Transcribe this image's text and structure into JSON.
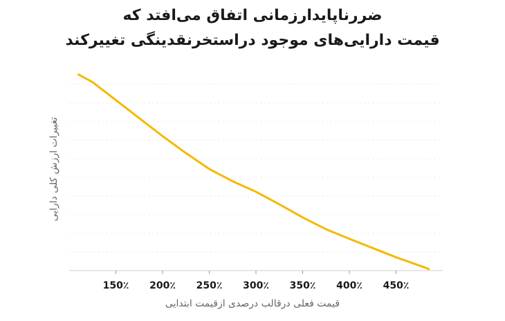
{
  "chart_data": {
    "type": "line",
    "title": "ضررناپایدارزمانی اتفاق می‌افتد که",
    "subtitle": "قیمت دارایی‌های موجود دراستخرنقدینگی تغییرکند",
    "xlabel": "قیمت فعلی درقالب درصدی ازقیمت ابتدایی",
    "ylabel": "تغییرات ارزش کلی دارایی",
    "xlim": [
      100,
      500
    ],
    "ylim": [
      0,
      1
    ],
    "x_ticks": [
      150,
      200,
      250,
      300,
      350,
      400,
      450
    ],
    "x_tick_labels": [
      "150٪",
      "200٪",
      "250٪",
      "300٪",
      "350٪",
      "400٪",
      "450٪"
    ],
    "grid": true,
    "colors": {
      "line": "#F5B800",
      "grid": "#e9e9e9",
      "axis": "#555555",
      "text": "#1a1a1a"
    },
    "series": [
      {
        "x": [
          110,
          125,
          150,
          175,
          200,
          225,
          250,
          275,
          300,
          325,
          350,
          375,
          400,
          425,
          450,
          475,
          485
        ],
        "y": [
          0.973,
          0.935,
          0.846,
          0.756,
          0.667,
          0.583,
          0.504,
          0.443,
          0.391,
          0.329,
          0.264,
          0.205,
          0.158,
          0.112,
          0.066,
          0.025,
          0.008
        ]
      }
    ]
  }
}
